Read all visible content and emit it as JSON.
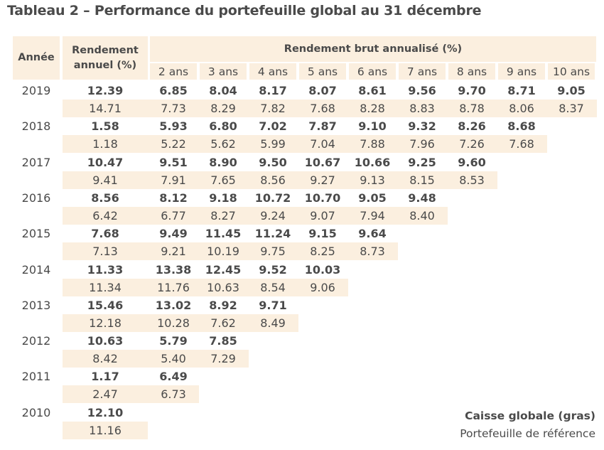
{
  "title": "Tableau 2 – Performance du portefeuille global au 31 décembre",
  "headers": {
    "year": "Année",
    "annual": "Rendement annuel (%)",
    "annualized": "Rendement brut annualisé (%)",
    "periods": [
      "2 ans",
      "3 ans",
      "4 ans",
      "5 ans",
      "6 ans",
      "7 ans",
      "8 ans",
      "9 ans",
      "10 ans"
    ]
  },
  "rows": [
    {
      "year": "2019",
      "annual": "12.39",
      "annual_ref": "14.71",
      "fund": [
        "6.85",
        "8.04",
        "8.17",
        "8.07",
        "8.61",
        "9.56",
        "9.70",
        "8.71",
        "9.05"
      ],
      "ref": [
        "7.73",
        "8.29",
        "7.82",
        "7.68",
        "8.28",
        "8.83",
        "8.78",
        "8.06",
        "8.37"
      ]
    },
    {
      "year": "2018",
      "annual": "1.58",
      "annual_ref": "1.18",
      "fund": [
        "5.93",
        "6.80",
        "7.02",
        "7.87",
        "9.10",
        "9.32",
        "8.26",
        "8.68"
      ],
      "ref": [
        "5.22",
        "5.62",
        "5.99",
        "7.04",
        "7.88",
        "7.96",
        "7.26",
        "7.68"
      ]
    },
    {
      "year": "2017",
      "annual": "10.47",
      "annual_ref": "9.41",
      "fund": [
        "9.51",
        "8.90",
        "9.50",
        "10.67",
        "10.66",
        "9.25",
        "9.60"
      ],
      "ref": [
        "7.91",
        "7.65",
        "8.56",
        "9.27",
        "9.13",
        "8.15",
        "8.53"
      ]
    },
    {
      "year": "2016",
      "annual": "8.56",
      "annual_ref": "6.42",
      "fund": [
        "8.12",
        "9.18",
        "10.72",
        "10.70",
        "9.05",
        "9.48"
      ],
      "ref": [
        "6.77",
        "8.27",
        "9.24",
        "9.07",
        "7.94",
        "8.40"
      ]
    },
    {
      "year": "2015",
      "annual": "7.68",
      "annual_ref": "7.13",
      "fund": [
        "9.49",
        "11.45",
        "11.24",
        "9.15",
        "9.64"
      ],
      "ref": [
        "9.21",
        "10.19",
        "9.75",
        "8.25",
        "8.73"
      ]
    },
    {
      "year": "2014",
      "annual": "11.33",
      "annual_ref": "11.34",
      "fund": [
        "13.38",
        "12.45",
        "9.52",
        "10.03"
      ],
      "ref": [
        "11.76",
        "10.63",
        "8.54",
        "9.06"
      ]
    },
    {
      "year": "2013",
      "annual": "15.46",
      "annual_ref": "12.18",
      "fund": [
        "13.02",
        "8.92",
        "9.71"
      ],
      "ref": [
        "10.28",
        "7.62",
        "8.49"
      ]
    },
    {
      "year": "2012",
      "annual": "10.63",
      "annual_ref": "8.42",
      "fund": [
        "5.79",
        "7.85"
      ],
      "ref": [
        "5.40",
        "7.29"
      ]
    },
    {
      "year": "2011",
      "annual": "1.17",
      "annual_ref": "2.47",
      "fund": [
        "6.49"
      ],
      "ref": [
        "6.73"
      ]
    },
    {
      "year": "2010",
      "annual": "12.10",
      "annual_ref": "11.16",
      "fund": [],
      "ref": []
    }
  ],
  "legend": {
    "bold": "Caisse globale (gras)",
    "normal": "Portefeuille de référence"
  }
}
